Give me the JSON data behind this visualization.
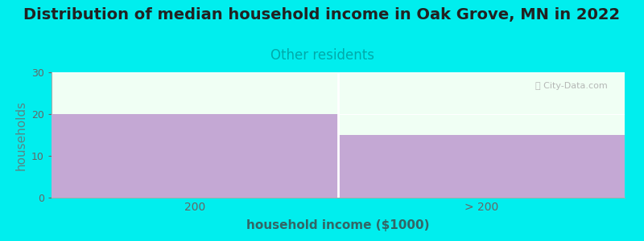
{
  "title": "Distribution of median household income in Oak Grove, MN in 2022",
  "subtitle": "Other residents",
  "xlabel": "household income ($1000)",
  "ylabel": "households",
  "categories": [
    "200",
    "> 200"
  ],
  "values": [
    20,
    15
  ],
  "bar_color": "#c4a8d4",
  "bg_color": "#00eeee",
  "plot_bg_color": "#f0fff4",
  "ylim": [
    0,
    30
  ],
  "yticks": [
    0,
    10,
    20,
    30
  ],
  "title_fontsize": 14,
  "subtitle_fontsize": 12,
  "subtitle_color": "#00aaaa",
  "axis_label_fontsize": 11,
  "ylabel_color": "#558888",
  "xlabel_color": "#336666",
  "watermark_text": "ⓘ City-Data.com",
  "watermark_color": "#aaaaaa",
  "tick_color": "#666666"
}
